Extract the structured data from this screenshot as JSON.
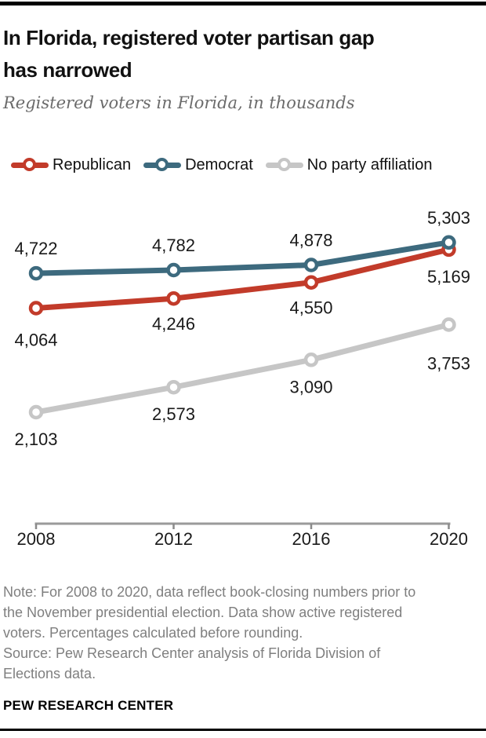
{
  "header": {
    "title": "In Florida, registered voter partisan gap\nhas narrowed",
    "subtitle": "Registered voters in Florida, in thousands"
  },
  "chart_data": {
    "type": "line",
    "title": "In Florida, registered voter partisan gap has narrowed",
    "subtitle": "Registered voters in Florida, in thousands",
    "x": [
      2008,
      2012,
      2016,
      2020
    ],
    "x_labels": [
      "2008",
      "2012",
      "2016",
      "2020"
    ],
    "series": [
      {
        "name": "Republican",
        "color": "#c23b2a",
        "values": [
          4064,
          4246,
          4550,
          5169
        ],
        "labels": [
          "4,064",
          "4,246",
          "4,550",
          "5,169"
        ]
      },
      {
        "name": "Democrat",
        "color": "#3d6a7e",
        "values": [
          4722,
          4782,
          4878,
          5303
        ],
        "labels": [
          "4,722",
          "4,782",
          "4,878",
          "5,303"
        ]
      },
      {
        "name": "No party affiliation",
        "color": "#c6c6c6",
        "values": [
          2103,
          2573,
          3090,
          3753
        ],
        "labels": [
          "2,103",
          "2,573",
          "3,090",
          "3,753"
        ]
      }
    ],
    "ylim": [
      0,
      6470
    ],
    "grid": false,
    "legend_position": "top",
    "axis_color": "#9a9a9a",
    "tick_color": "#8a8a8a",
    "label_color": "#1a1a1a"
  },
  "footer": {
    "note": "Note: For 2008 to 2020, data reflect book-closing numbers prior to\nthe November presidential election. Data show active registered\nvoters. Percentages calculated before rounding.\nSource: Pew Research Center analysis of Florida Division of\nElections data.",
    "brand": "PEW RESEARCH CENTER"
  }
}
